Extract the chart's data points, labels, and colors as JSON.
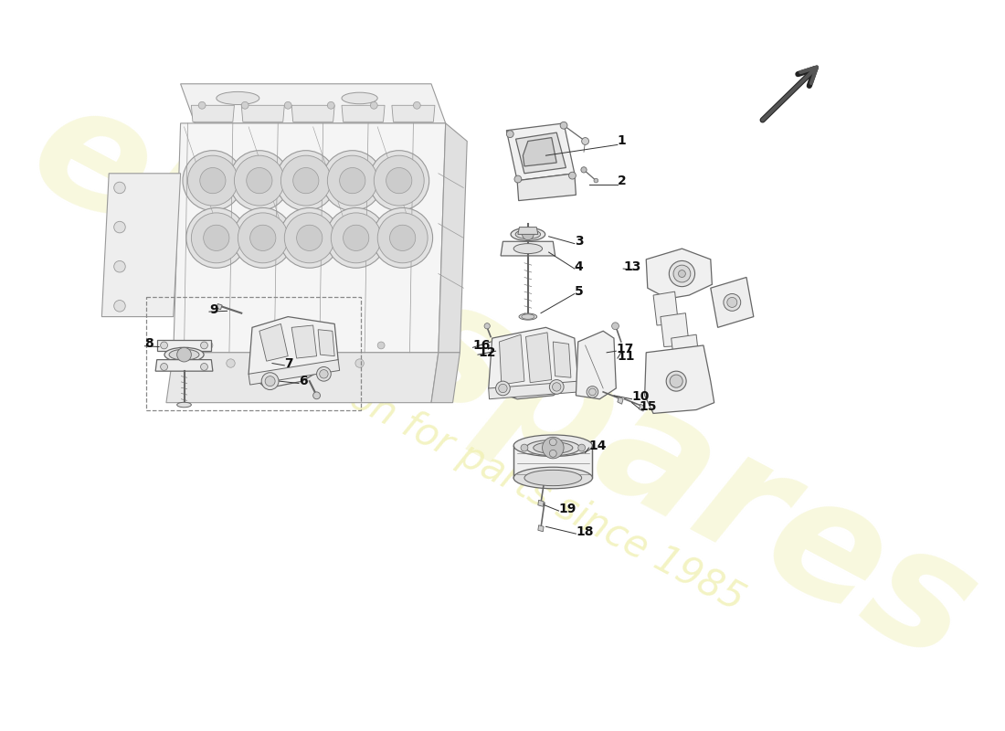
{
  "background_color": "#ffffff",
  "line_color": "#333333",
  "line_color_light": "#888888",
  "line_color_engine": "#aaaaaa",
  "watermark1": "eurospares",
  "watermark2": "a passion for parts since 1985",
  "wm_color": "#f5f5d0",
  "wm_alpha": 0.7,
  "arrow_color": "#555555",
  "arrow_outline": "#333333",
  "fig_width": 11.0,
  "fig_height": 8.0,
  "dpi": 100
}
